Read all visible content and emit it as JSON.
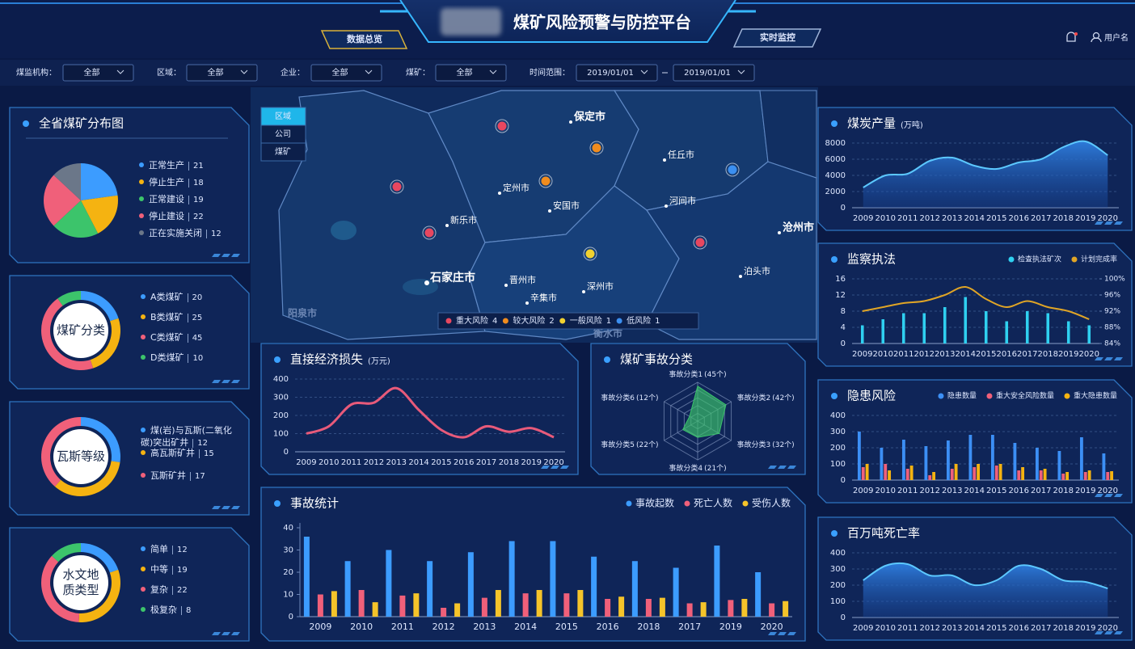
{
  "header": {
    "title": "煤矿风险预警与防控平台",
    "nav": [
      "数据总览",
      "实时监控"
    ],
    "user": "用户名"
  },
  "filters": [
    {
      "label": "煤监机构：",
      "values": [
        "全部"
      ]
    },
    {
      "label": "区域：",
      "values": [
        "全部"
      ]
    },
    {
      "label": "企业：",
      "values": [
        "全部"
      ]
    },
    {
      "label": "煤矿：",
      "values": [
        "全部"
      ]
    },
    {
      "label": "时间范围：",
      "values": [
        "2019/01/01",
        "2019/01/01"
      ]
    }
  ],
  "map": {
    "tabs": [
      "区域",
      "公司",
      "煤矿"
    ],
    "places": [
      "保定市",
      "任丘市",
      "定州市",
      "安国市",
      "河间市",
      "新乐市",
      "沧州市",
      "泊头市",
      "石家庄市",
      "晋州市",
      "深州市",
      "辛集市",
      "阳泉市",
      "衡水市"
    ],
    "legend": [
      {
        "name": "重大风险",
        "count": 4,
        "color": "#e8475f"
      },
      {
        "name": "较大风险",
        "count": 2,
        "color": "#f08c1e"
      },
      {
        "name": "一般风险",
        "count": 1,
        "color": "#f2d230"
      },
      {
        "name": "低风险",
        "count": 1,
        "color": "#3b8ff0"
      }
    ]
  },
  "chart_data": [
    {
      "type": "pie",
      "title": "全省煤矿分布图",
      "categories": [
        "正常生产",
        "停止生产",
        "正常建设",
        "停止建设",
        "正在实施关闭"
      ],
      "values": [
        21,
        18,
        19,
        22,
        12
      ],
      "colors": [
        "#3c9cff",
        "#f5b311",
        "#3cc46b",
        "#f0607a",
        "#6b7789"
      ]
    },
    {
      "type": "donut",
      "center_label": [
        "煤矿分类"
      ],
      "categories": [
        "A类煤矿",
        "B类煤矿",
        "C类煤矿",
        "D类煤矿"
      ],
      "values": [
        20,
        25,
        45,
        10
      ],
      "colors": [
        "#3c9cff",
        "#f5b311",
        "#f0607a",
        "#3cc46b"
      ]
    },
    {
      "type": "donut",
      "center_label": [
        "瓦斯等级"
      ],
      "categories": [
        "煤(岩)与瓦斯(二氧化碳)突出矿井",
        "高瓦斯矿井",
        "瓦斯矿井"
      ],
      "values": [
        12,
        15,
        17
      ],
      "colors": [
        "#3c9cff",
        "#f5b311",
        "#f0607a"
      ]
    },
    {
      "type": "donut",
      "center_label": [
        "水文地",
        "质类型"
      ],
      "categories": [
        "简单",
        "中等",
        "复杂",
        "极复杂"
      ],
      "values": [
        12,
        19,
        22,
        8
      ],
      "colors": [
        "#3c9cff",
        "#f5b311",
        "#f0607a",
        "#3cc46b"
      ]
    },
    {
      "type": "area",
      "title": "煤炭产量",
      "unit": "(万吨)",
      "color": "#3a9df5",
      "categories": [
        "2009",
        "2010",
        "2011",
        "2012",
        "2013",
        "2014",
        "2015",
        "2016",
        "2017",
        "2018",
        "2019",
        "2020"
      ],
      "values": [
        2500,
        4000,
        4200,
        5800,
        6200,
        5200,
        4800,
        5600,
        6000,
        7500,
        8200,
        6500
      ],
      "ylim": [
        0,
        8000
      ],
      "yticks": [
        0,
        2000,
        4000,
        6000,
        8000
      ],
      "grid": true
    },
    {
      "type": "bar_line",
      "title": "监察执法",
      "categories": [
        "2009",
        "2010",
        "2011",
        "2012",
        "2013",
        "2014",
        "2015",
        "2016",
        "2017",
        "2018",
        "2019",
        "2020"
      ],
      "series": [
        {
          "name": "检查执法矿次",
          "color": "#2fd0f0",
          "values": [
            4.5,
            6,
            7.5,
            7.5,
            9,
            11.5,
            8,
            5.5,
            8,
            7.5,
            5.5,
            4.5
          ]
        },
        {
          "name": "计划完成率",
          "color": "#e0a526",
          "axis": "y2",
          "values": [
            92,
            93,
            94,
            94.5,
            96,
            98,
            95,
            93,
            94.5,
            93,
            92,
            90
          ]
        }
      ],
      "ylim": [
        0,
        16
      ],
      "yticks": [
        0,
        4,
        8,
        12,
        16
      ],
      "y2lim": [
        84,
        100
      ],
      "y2ticks": [
        {
          "value": 84,
          "label": "84%"
        },
        {
          "value": 88,
          "label": "88%"
        },
        {
          "value": 92,
          "label": "92%"
        },
        {
          "value": 96,
          "label": "96%"
        },
        {
          "value": 100,
          "label": "100%"
        }
      ],
      "grid": true
    },
    {
      "type": "line",
      "title": "直接经济损失",
      "unit": "(万元)",
      "color": "#e85a7a",
      "categories": [
        "2009",
        "2010",
        "2011",
        "2012",
        "2013",
        "2014",
        "2015",
        "2016",
        "2017",
        "2018",
        "2019",
        "2020"
      ],
      "values": [
        100,
        140,
        260,
        270,
        350,
        230,
        120,
        80,
        140,
        110,
        130,
        80
      ],
      "ylim": [
        0,
        400
      ],
      "yticks": [
        0,
        100,
        200,
        300,
        400
      ],
      "grid": true
    },
    {
      "type": "radar",
      "title": "煤矿事故分类",
      "color": "#3cc46b",
      "categories": [
        "事故分类1",
        "事故分类2",
        "事故分类3",
        "事故分类4",
        "事故分类5",
        "事故分类6"
      ],
      "values": [
        45,
        42,
        32,
        21,
        22,
        12
      ],
      "value_labels": [
        "(45个)",
        "(42个)",
        "(32个)",
        "(21个)",
        "(22个)",
        "(12个)"
      ],
      "rlim": [
        0,
        50
      ]
    },
    {
      "type": "grouped_bar",
      "title": "隐患风险",
      "categories": [
        "2009",
        "2010",
        "2011",
        "2012",
        "2013",
        "2014",
        "2015",
        "2016",
        "2017",
        "2018",
        "2019",
        "2020"
      ],
      "series": [
        {
          "name": "隐患数量",
          "color": "#3c8ff5",
          "values": [
            300,
            200,
            250,
            210,
            245,
            280,
            280,
            230,
            200,
            180,
            265,
            165
          ]
        },
        {
          "name": "重大安全风险数量",
          "color": "#f0607a",
          "values": [
            80,
            100,
            70,
            30,
            70,
            80,
            90,
            60,
            60,
            40,
            50,
            50
          ]
        },
        {
          "name": "重大隐患数量",
          "color": "#f5b311",
          "values": [
            100,
            60,
            90,
            50,
            100,
            100,
            100,
            80,
            70,
            50,
            60,
            55
          ]
        }
      ],
      "ylim": [
        0,
        400
      ],
      "yticks": [
        0,
        100,
        200,
        300,
        400
      ],
      "grid": true
    },
    {
      "type": "area",
      "title": "百万吨死亡率",
      "color": "#3a9df5",
      "categories": [
        "2009",
        "2010",
        "2011",
        "2012",
        "2013",
        "2014",
        "2015",
        "2016",
        "2017",
        "2018",
        "2019",
        "2020"
      ],
      "values": [
        230,
        320,
        330,
        260,
        260,
        200,
        230,
        320,
        300,
        230,
        220,
        180
      ],
      "ylim": [
        0,
        400
      ],
      "yticks": [
        0,
        100,
        200,
        300,
        400
      ],
      "grid": true
    },
    {
      "type": "grouped_bar",
      "title": "事故统计",
      "categories": [
        "2009",
        "2010",
        "2011",
        "2012",
        "2013",
        "2014",
        "2015",
        "2016",
        "2018",
        "2017",
        "2019",
        "2020"
      ],
      "series": [
        {
          "name": "事故起数",
          "color": "#3c9cff",
          "values": [
            36,
            25,
            30,
            25,
            29,
            34,
            34,
            27,
            25,
            22,
            32,
            20
          ]
        },
        {
          "name": "死亡人数",
          "color": "#f0607a",
          "values": [
            10,
            12,
            9.5,
            4,
            8.5,
            10.5,
            10.5,
            8,
            8,
            6,
            7.5,
            6
          ]
        },
        {
          "name": "受伤人数",
          "color": "#f5c42a",
          "values": [
            11.5,
            6.5,
            10.5,
            6,
            12,
            12,
            12,
            9,
            8.5,
            6.5,
            8,
            7
          ]
        }
      ],
      "ylim": [
        0,
        40
      ],
      "yticks": [
        0,
        10,
        20,
        30,
        40
      ],
      "grid": false
    }
  ]
}
